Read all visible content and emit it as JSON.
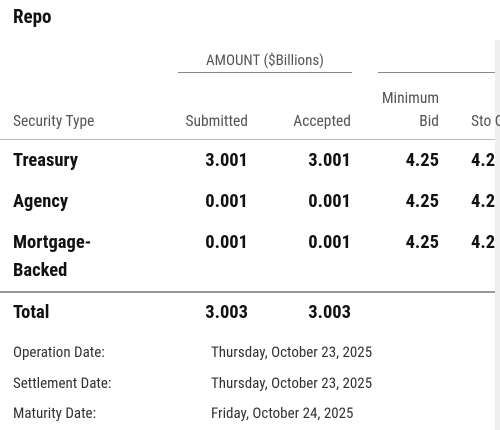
{
  "title": "Repo",
  "group_header": "AMOUNT ($Billions)",
  "columns": [
    "Security Type",
    "Submitted",
    "Accepted",
    "Minimum Bid",
    "Sto Ou"
  ],
  "rows": [
    [
      "Treasury",
      3.001,
      3.001,
      4.25,
      4.2
    ],
    [
      "Agency",
      0.001,
      0.001,
      4.25,
      4.2
    ],
    [
      "Mortgage-Backed",
      0.001,
      0.001,
      4.25,
      4.2
    ]
  ],
  "total": [
    "Total",
    3.003,
    3.003
  ],
  "details": [
    [
      "Operation Date:",
      "Thursday, October 23, 2025"
    ],
    [
      "Settlement Date:",
      "Thursday, October 23, 2025"
    ],
    [
      "Maturity Date:",
      "Friday, October 24, 2025"
    ]
  ]
}
